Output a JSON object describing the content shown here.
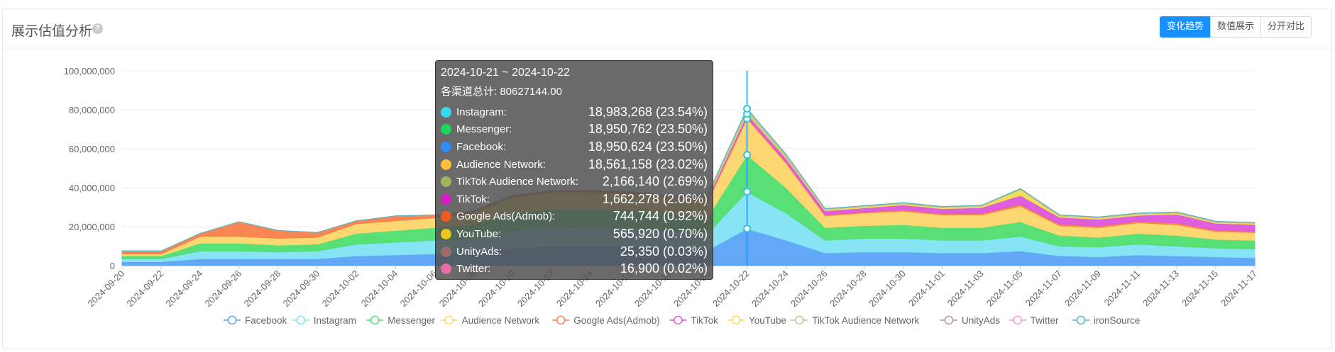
{
  "header": {
    "title": "展示估值分析",
    "help_icon": "question-circle-icon",
    "buttons": [
      {
        "label": "变化趋势",
        "active": true
      },
      {
        "label": "数值展示",
        "active": false
      },
      {
        "label": "分开对比",
        "active": false
      }
    ],
    "accent_color": "#1890ff"
  },
  "tooltip": {
    "range": "2024-10-21 ~ 2024-10-22",
    "total": "各渠道总计: 80627144.00",
    "items": [
      {
        "name": "Instagram:",
        "value": "18,983,268 (23.54%)",
        "color": "#36d7f0"
      },
      {
        "name": "Messenger:",
        "value": "18,950,762 (23.50%)",
        "color": "#1ad65a"
      },
      {
        "name": "Facebook:",
        "value": "18,950,624 (23.50%)",
        "color": "#2f8cf5"
      },
      {
        "name": "Audience Network:",
        "value": "18,561,158 (23.02%)",
        "color": "#fbbf3a"
      },
      {
        "name": "TikTok Audience Network:",
        "value": "2,166,140 (2.69%)",
        "color": "#9cb75b"
      },
      {
        "name": "TikTok:",
        "value": "1,662,278 (2.06%)",
        "color": "#d81bc8"
      },
      {
        "name": "Google Ads(Admob):",
        "value": "744,744 (0.92%)",
        "color": "#f05a22"
      },
      {
        "name": "YouTube:",
        "value": "565,920 (0.70%)",
        "color": "#e8c61c"
      },
      {
        "name": "UnityAds:",
        "value": "25,350 (0.03%)",
        "color": "#9d6a6a"
      },
      {
        "name": "Twitter:",
        "value": "16,900 (0.02%)",
        "color": "#e86aa8"
      }
    ]
  },
  "chart_data": {
    "type": "area",
    "stacked": true,
    "x": [
      "2024-09-20",
      "2024-09-22",
      "2024-09-24",
      "2024-09-26",
      "2024-09-28",
      "2024-09-30",
      "2024-10-02",
      "2024-10-04",
      "2024-10-06",
      "2024-10-08",
      "2024-10-10",
      "2024-10-12",
      "2024-10-14",
      "2024-10-16",
      "2024-10-18",
      "2024-10-20",
      "2024-10-22",
      "2024-10-24",
      "2024-10-26",
      "2024-10-28",
      "2024-10-30",
      "2024-11-01",
      "2024-11-03",
      "2024-11-05",
      "2024-11-07",
      "2024-11-09",
      "2024-11-11",
      "2024-11-13",
      "2024-11-15",
      "2024-11-17"
    ],
    "x_tick_labels": [
      "2024-09-20",
      "2024-09-22",
      "2024-09-24",
      "2024-09-26",
      "2024-09-28",
      "2024-09-30",
      "2024-10-02",
      "2024-10-04",
      "2024-10-06",
      "2024-10-08",
      "2024-10-10",
      "2024-10-12",
      "2024-10-14",
      "2024-10-16",
      "2024-10-18",
      "2024-10-20",
      "2024-10-22",
      "2024-10-24",
      "2024-10-26",
      "2024-10-28",
      "2024-10-30",
      "2024-11-01",
      "2024-11-03",
      "2024-11-05",
      "2024-11-07",
      "2024-11-09",
      "2024-11-11",
      "2024-11-13",
      "2024-11-15",
      "2024-11-17"
    ],
    "y_tick_labels": [
      "0",
      "20,000,000",
      "40,000,000",
      "60,000,000",
      "80,000,000",
      "100,000,000"
    ],
    "ylim": [
      0,
      100000000
    ],
    "grid": true,
    "legend_position": "bottom",
    "series": [
      {
        "name": "Facebook",
        "color": "#5aa3f5",
        "values": [
          2000000,
          2000000,
          3500000,
          3500000,
          3500000,
          3500000,
          5000000,
          5500000,
          6000000,
          6500000,
          9000000,
          10000000,
          10000000,
          10000000,
          9000000,
          8000000,
          18950624,
          13000000,
          6500000,
          7000000,
          7000000,
          6500000,
          6500000,
          7500000,
          5000000,
          4500000,
          5500000,
          5000000,
          4500000,
          4000000
        ]
      },
      {
        "name": "Instagram",
        "color": "#7fe3f4",
        "values": [
          1500000,
          1500000,
          4000000,
          4000000,
          3500000,
          4000000,
          6000000,
          6500000,
          7000000,
          7500000,
          9000000,
          10000000,
          9500000,
          9500000,
          9000000,
          8500000,
          18983268,
          14000000,
          6500000,
          7000000,
          7000000,
          6500000,
          6500000,
          7500000,
          5000000,
          5000000,
          5500000,
          5000000,
          4500000,
          4500000
        ]
      },
      {
        "name": "Messenger",
        "color": "#4fde70",
        "values": [
          1500000,
          1500000,
          4000000,
          4000000,
          3500000,
          3500000,
          5500000,
          6000000,
          6500000,
          7000000,
          9000000,
          9000000,
          9500000,
          9000000,
          9000000,
          8500000,
          18950762,
          13000000,
          6500000,
          6500000,
          7000000,
          6500000,
          6500000,
          7500000,
          5500000,
          5000000,
          5500000,
          5500000,
          4500000,
          4500000
        ]
      },
      {
        "name": "Audience Network",
        "color": "#fdd66a",
        "values": [
          1000000,
          1000000,
          3500000,
          3500000,
          3500000,
          3500000,
          5000000,
          5000000,
          5000000,
          6000000,
          8000000,
          8500000,
          8500000,
          8500000,
          8000000,
          8000000,
          18561158,
          12500000,
          6000000,
          6500000,
          7000000,
          6500000,
          6500000,
          8000000,
          5000000,
          5000000,
          5500000,
          5500000,
          4000000,
          4000000
        ]
      },
      {
        "name": "Google Ads(Admob)",
        "color": "#f8804a",
        "values": [
          1500000,
          1500000,
          1500000,
          7500000,
          4000000,
          2500000,
          1500000,
          2500000,
          1500000,
          1000000,
          1000000,
          1000000,
          1000000,
          1000000,
          900000,
          800000,
          744744,
          600000,
          600000,
          600000,
          700000,
          700000,
          800000,
          1000000,
          800000,
          800000,
          800000,
          900000,
          700000,
          600000
        ]
      },
      {
        "name": "TikTok",
        "color": "#dc55dc",
        "values": [
          0,
          0,
          0,
          0,
          0,
          0,
          0,
          0,
          0,
          0,
          0,
          0,
          0,
          0,
          0,
          1000000,
          1662278,
          2000000,
          2000000,
          2000000,
          2500000,
          2500000,
          3000000,
          4500000,
          3500000,
          3500000,
          3000000,
          4500000,
          3500000,
          3500000
        ]
      },
      {
        "name": "YouTube",
        "color": "#f2dc52",
        "values": [
          0,
          0,
          0,
          0,
          0,
          0,
          0,
          0,
          0,
          0,
          0,
          0,
          0,
          0,
          0,
          400000,
          565920,
          500000,
          600000,
          600000,
          600000,
          600000,
          600000,
          3000000,
          700000,
          600000,
          600000,
          600000,
          600000,
          600000
        ]
      },
      {
        "name": "TikTok Audience Network",
        "color": "#b5c98a",
        "values": [
          0,
          0,
          0,
          0,
          0,
          0,
          0,
          0,
          0,
          0,
          0,
          0,
          0,
          0,
          0,
          1500000,
          2166140,
          1500000,
          500000,
          500000,
          500000,
          500000,
          500000,
          500000,
          500000,
          500000,
          500000,
          500000,
          400000,
          400000
        ]
      },
      {
        "name": "UnityAds",
        "color": "#b69393",
        "values": [
          0,
          0,
          0,
          0,
          0,
          0,
          0,
          0,
          0,
          0,
          0,
          0,
          0,
          0,
          0,
          20000,
          25350,
          20000,
          20000,
          20000,
          20000,
          20000,
          20000,
          20000,
          20000,
          20000,
          20000,
          20000,
          20000,
          20000
        ]
      },
      {
        "name": "Twitter",
        "color": "#f099c4",
        "values": [
          0,
          0,
          0,
          0,
          0,
          0,
          0,
          0,
          0,
          0,
          0,
          0,
          0,
          0,
          0,
          15000,
          16900,
          15000,
          15000,
          15000,
          15000,
          15000,
          15000,
          15000,
          15000,
          15000,
          15000,
          15000,
          15000,
          15000
        ]
      },
      {
        "name": "ironSource",
        "color": "#49b8c4",
        "values": [
          0,
          0,
          0,
          0,
          0,
          0,
          0,
          0,
          0,
          0,
          0,
          0,
          0,
          0,
          0,
          0,
          0,
          0,
          0,
          0,
          0,
          0,
          0,
          0,
          0,
          0,
          0,
          0,
          0,
          0
        ]
      }
    ],
    "highlight_x": "2024-10-22"
  }
}
